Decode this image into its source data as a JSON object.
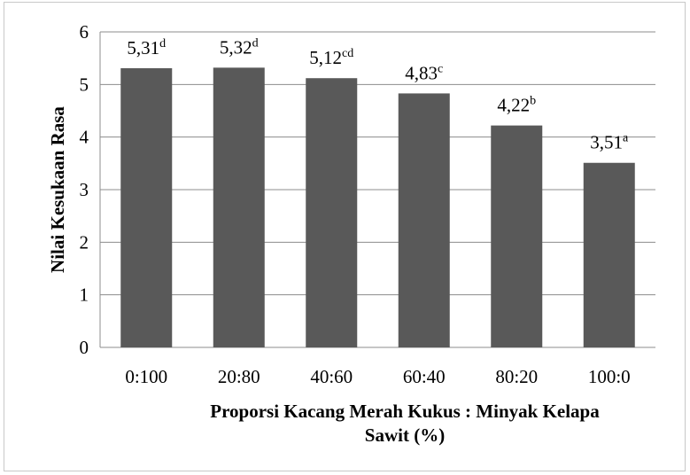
{
  "chart_data": {
    "type": "bar",
    "categories": [
      "0:100",
      "20:80",
      "40:60",
      "60:40",
      "80:20",
      "100:0"
    ],
    "values": [
      5.31,
      5.32,
      5.12,
      4.83,
      4.22,
      3.51
    ],
    "data_labels": [
      {
        "value": "5,31",
        "sup": "d"
      },
      {
        "value": "5,32",
        "sup": "d"
      },
      {
        "value": "5,12",
        "sup": "cd"
      },
      {
        "value": "4,83",
        "sup": "c"
      },
      {
        "value": "4,22",
        "sup": "b"
      },
      {
        "value": "3,51",
        "sup": "a"
      }
    ],
    "xlabel_lines": [
      "Proporsi Kacang Merah Kukus : Minyak Kelapa",
      "Sawit (%)"
    ],
    "ylabel": "Nilai Kesukaan Rasa",
    "ylim": [
      0,
      6
    ],
    "yticks": [
      0,
      1,
      2,
      3,
      4,
      5,
      6
    ],
    "grid": true,
    "legend": "none",
    "bar_color": "#595959",
    "gridline_color": "#8c8c8c"
  }
}
